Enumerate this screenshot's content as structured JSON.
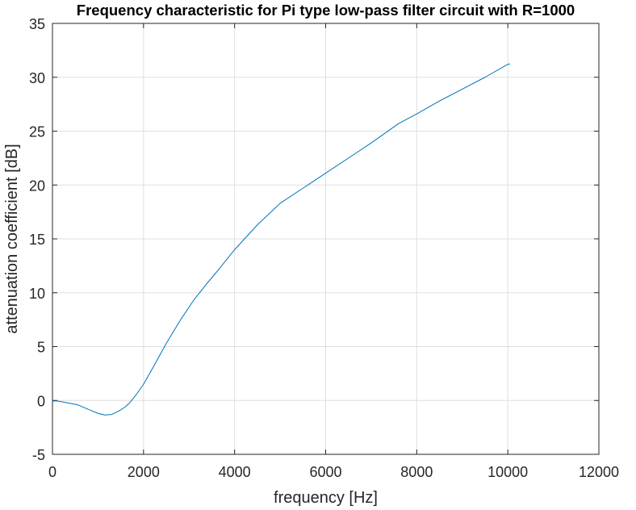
{
  "chart_data": {
    "type": "line",
    "title": "Frequency characteristic for Pi type low-pass filter circuit with R=1000",
    "xlabel": "frequency [Hz]",
    "ylabel": "attenuation coefficient [dB]",
    "xlim": [
      0,
      12000
    ],
    "ylim": [
      -5,
      35
    ],
    "xticks": [
      0,
      2000,
      4000,
      6000,
      8000,
      10000,
      12000
    ],
    "yticks": [
      -5,
      0,
      5,
      10,
      15,
      20,
      25,
      30,
      35
    ],
    "grid": true,
    "legend": "none",
    "series": [
      {
        "color": "#0072bd",
        "x": [
          0,
          100,
          300,
          550,
          800,
          1000,
          1150,
          1300,
          1450,
          1600,
          1700,
          1850,
          2000,
          2200,
          2500,
          2800,
          3100,
          3400,
          3600,
          4000,
          4500,
          5000,
          5500,
          6000,
          6500,
          7000,
          7500,
          7600,
          8000,
          8500,
          9000,
          9500,
          10000,
          10050
        ],
        "y": [
          -0.05,
          -0.05,
          -0.2,
          -0.4,
          -0.85,
          -1.2,
          -1.35,
          -1.3,
          -1.0,
          -0.6,
          -0.2,
          0.6,
          1.5,
          3.0,
          5.3,
          7.4,
          9.3,
          10.9,
          11.9,
          14.0,
          16.3,
          18.3,
          19.7,
          21.1,
          22.5,
          23.9,
          25.4,
          25.7,
          26.6,
          27.8,
          28.9,
          30.0,
          31.2,
          31.25
        ]
      }
    ]
  }
}
